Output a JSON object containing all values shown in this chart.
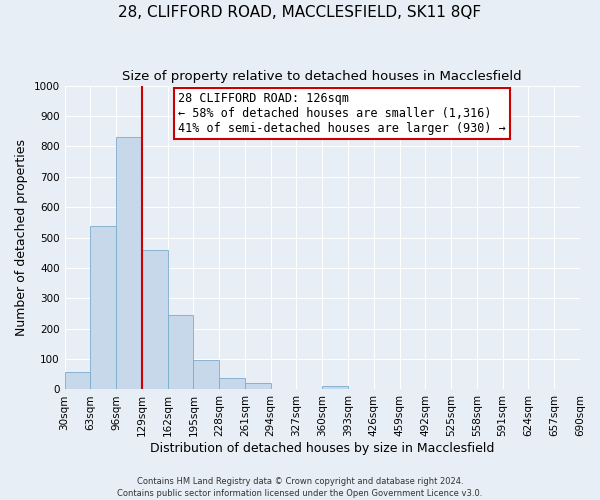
{
  "title": "28, CLIFFORD ROAD, MACCLESFIELD, SK11 8QF",
  "subtitle": "Size of property relative to detached houses in Macclesfield",
  "xlabel": "Distribution of detached houses by size in Macclesfield",
  "ylabel": "Number of detached properties",
  "footnote1": "Contains HM Land Registry data © Crown copyright and database right 2024.",
  "footnote2": "Contains public sector information licensed under the Open Government Licence v3.0.",
  "bar_edges": [
    30,
    63,
    96,
    129,
    162,
    195,
    228,
    261,
    294,
    327,
    360,
    393,
    426,
    459,
    492,
    525,
    558,
    591,
    624,
    657,
    690
  ],
  "bar_heights": [
    57,
    537,
    830,
    460,
    245,
    97,
    37,
    20,
    0,
    0,
    10,
    0,
    0,
    0,
    0,
    0,
    0,
    0,
    0,
    0
  ],
  "bar_color": "#c8d8eb",
  "bar_edge_color": "#7aabcc",
  "vline_x": 129,
  "vline_color": "#cc0000",
  "annotation_line1": "28 CLIFFORD ROAD: 126sqm",
  "annotation_line2": "← 58% of detached houses are smaller (1,316)",
  "annotation_line3": "41% of semi-detached houses are larger (930) →",
  "annotation_box_color": "#cc0000",
  "ylim": [
    0,
    1000
  ],
  "yticks": [
    0,
    100,
    200,
    300,
    400,
    500,
    600,
    700,
    800,
    900,
    1000
  ],
  "bg_color": "#e8eef5",
  "grid_color": "#ffffff",
  "title_fontsize": 11,
  "subtitle_fontsize": 9.5,
  "label_fontsize": 9,
  "tick_fontsize": 7.5,
  "annot_fontsize": 8.5,
  "footnote_fontsize": 6
}
